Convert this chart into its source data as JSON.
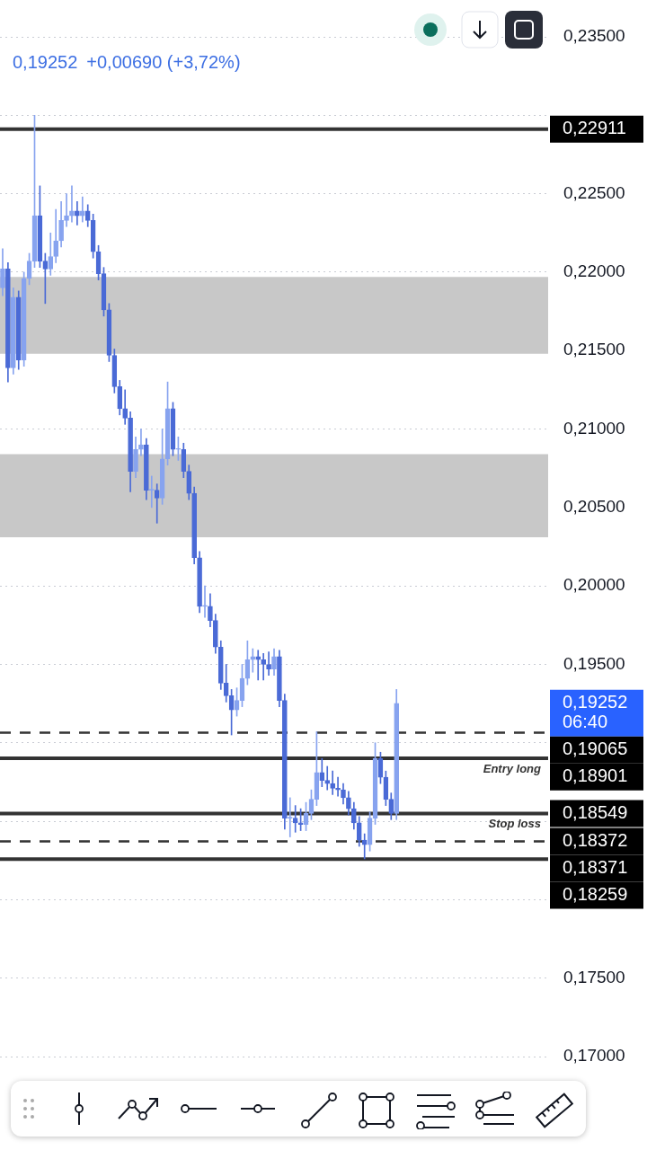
{
  "chart_data": {
    "type": "candlestick",
    "colors": [
      "#87a3ef",
      "#4a6ad6",
      "#87a3ef",
      "#4a6ad6",
      "#87a3ef",
      "#87a3ef",
      "#87a3ef",
      "#4a6ad6",
      "#4a6ad6",
      "#87a3ef",
      "#87a3ef",
      "#87a3ef",
      "#87a3ef",
      "#87a3ef",
      "#4a6ad6",
      "#87a3ef",
      "#4a6ad6",
      "#4a6ad6",
      "#4a6ad6",
      "#4a6ad6",
      "#4a6ad6",
      "#4a6ad6",
      "#4a6ad6",
      "#4a6ad6",
      "#4a6ad6",
      "#87a3ef",
      "#87a3ef",
      "#4a6ad6",
      "#87a3ef",
      "#4a6ad6",
      "#87a3ef",
      "#87a3ef",
      "#4a6ad6",
      "#87a3ef",
      "#4a6ad6",
      "#4a6ad6",
      "#4a6ad6",
      "#4a6ad6",
      "#87a3ef",
      "#4a6ad6",
      "#4a6ad6",
      "#4a6ad6",
      "#4a6ad6",
      "#4a6ad6",
      "#87a3ef",
      "#87a3ef",
      "#87a3ef",
      "#87a3ef",
      "#4a6ad6",
      "#4a6ad6",
      "#4a6ad6",
      "#87a3ef",
      "#4a6ad6",
      "#4a6ad6",
      "#87a3ef",
      "#4a6ad6",
      "#4a6ad6",
      "#87a3ef",
      "#87a3ef",
      "#87a3ef",
      "#4a6ad6",
      "#4a6ad6",
      "#4a6ad6",
      "#4a6ad6",
      "#4a6ad6",
      "#4a6ad6",
      "#4a6ad6",
      "#4a6ad6",
      "#4a6ad6",
      "#87a3ef",
      "#87a3ef",
      "#4a6ad6",
      "#4a6ad6",
      "#4a6ad6",
      "#87a3ef",
      null,
      null,
      null,
      null,
      null,
      null,
      null,
      null,
      null,
      null,
      null,
      null,
      null,
      null,
      null,
      null,
      null,
      null,
      null,
      null,
      null,
      null,
      null,
      null,
      null,
      null,
      null,
      null
    ],
    "categories": [
      null,
      null,
      null,
      null,
      null,
      null,
      null,
      null,
      null,
      null,
      null,
      null,
      null,
      null,
      null,
      null,
      null,
      null,
      null,
      null,
      null,
      null,
      null,
      null,
      null,
      null,
      null,
      null,
      null,
      null,
      null,
      null,
      null,
      null,
      null,
      null,
      null,
      null,
      null,
      null,
      null,
      null,
      null,
      null,
      null,
      null,
      null,
      null,
      null,
      null,
      null,
      null,
      null,
      null,
      null,
      null,
      null,
      null,
      null,
      null,
      null,
      null,
      null,
      null,
      null,
      null,
      null,
      null,
      null,
      null,
      null,
      null,
      null,
      null,
      null,
      null,
      null,
      null,
      null,
      null,
      null,
      null,
      null,
      null,
      null,
      null,
      null,
      null,
      null,
      null,
      null,
      null,
      null,
      null,
      null,
      null,
      null,
      null,
      null,
      null,
      null,
      null,
      null
    ],
    "ohlc": [
      [
        0.219,
        0.2215,
        0.2185,
        0.2202
      ],
      [
        0.2202,
        0.2206,
        0.213,
        0.2139
      ],
      [
        0.2139,
        0.219,
        0.2135,
        0.2184
      ],
      [
        0.2184,
        0.2188,
        0.2138,
        0.2144
      ],
      [
        0.2144,
        0.22,
        0.214,
        0.2196
      ],
      [
        0.2196,
        0.2212,
        0.2192,
        0.2207
      ],
      [
        0.2207,
        0.23,
        0.2203,
        0.2236
      ],
      [
        0.2236,
        0.2255,
        0.2203,
        0.2207
      ],
      [
        0.2207,
        0.2212,
        0.218,
        0.2202
      ],
      [
        0.2202,
        0.2225,
        0.2198,
        0.221
      ],
      [
        0.221,
        0.224,
        0.2206,
        0.222
      ],
      [
        0.222,
        0.2245,
        0.2216,
        0.2233
      ],
      [
        0.2233,
        0.225,
        0.2229,
        0.2236
      ],
      [
        0.2236,
        0.2255,
        0.2232,
        0.2239
      ],
      [
        0.2239,
        0.2245,
        0.223,
        0.2236
      ],
      [
        0.2236,
        0.2248,
        0.2232,
        0.2239
      ],
      [
        0.2239,
        0.2243,
        0.2229,
        0.2233
      ],
      [
        0.2233,
        0.2237,
        0.2209,
        0.2213
      ],
      [
        0.2213,
        0.2217,
        0.2195,
        0.2199
      ],
      [
        0.2199,
        0.2203,
        0.2172,
        0.2176
      ],
      [
        0.2176,
        0.218,
        0.2143,
        0.2147
      ],
      [
        0.2147,
        0.2151,
        0.2123,
        0.2127
      ],
      [
        0.2127,
        0.2131,
        0.2109,
        0.2113
      ],
      [
        0.2113,
        0.2125,
        0.2103,
        0.2107
      ],
      [
        0.2107,
        0.2111,
        0.206,
        0.2073
      ],
      [
        0.2073,
        0.2095,
        0.2069,
        0.2087
      ],
      [
        0.2087,
        0.21,
        0.2083,
        0.209
      ],
      [
        0.209,
        0.2094,
        0.2055,
        0.2061
      ],
      [
        0.2061,
        0.207,
        0.205,
        0.2061
      ],
      [
        0.2061,
        0.2065,
        0.204,
        0.2056
      ],
      [
        0.2056,
        0.21,
        0.2052,
        0.2081
      ],
      [
        0.2081,
        0.213,
        0.2077,
        0.2113
      ],
      [
        0.2113,
        0.2117,
        0.2083,
        0.2087
      ],
      [
        0.2087,
        0.2095,
        0.208,
        0.2087
      ],
      [
        0.2087,
        0.2091,
        0.2069,
        0.2073
      ],
      [
        0.2073,
        0.2077,
        0.2055,
        0.2059
      ],
      [
        0.2059,
        0.2063,
        0.2014,
        0.2018
      ],
      [
        0.2018,
        0.2022,
        0.1983,
        0.1987
      ],
      [
        0.1987,
        0.2,
        0.198,
        0.1987
      ],
      [
        0.1987,
        0.1995,
        0.1974,
        0.1978
      ],
      [
        0.1978,
        0.1982,
        0.1957,
        0.1961
      ],
      [
        0.1961,
        0.1965,
        0.1934,
        0.1938
      ],
      [
        0.1938,
        0.195,
        0.1926,
        0.193
      ],
      [
        0.193,
        0.1934,
        0.1905,
        0.1921
      ],
      [
        0.1921,
        0.1935,
        0.1917,
        0.1927
      ],
      [
        0.1927,
        0.195,
        0.1923,
        0.1941
      ],
      [
        0.1941,
        0.1965,
        0.1937,
        0.1953
      ],
      [
        0.1953,
        0.196,
        0.1945,
        0.1955
      ],
      [
        0.1955,
        0.1959,
        0.194,
        0.1953
      ],
      [
        0.1953,
        0.1957,
        0.194,
        0.195
      ],
      [
        0.195,
        0.1958,
        0.1943,
        0.1947
      ],
      [
        0.1947,
        0.196,
        0.1943,
        0.1955
      ],
      [
        0.1955,
        0.1959,
        0.1923,
        0.1927
      ],
      [
        0.1927,
        0.1931,
        0.1845,
        0.1852
      ],
      [
        0.1852,
        0.1865,
        0.184,
        0.1852
      ],
      [
        0.1852,
        0.186,
        0.1843,
        0.1849
      ],
      [
        0.1849,
        0.1858,
        0.1844,
        0.1848
      ],
      [
        0.1848,
        0.1862,
        0.1844,
        0.1855
      ],
      [
        0.1855,
        0.187,
        0.1851,
        0.1864
      ],
      [
        0.1864,
        0.1907,
        0.186,
        0.1881
      ],
      [
        0.1881,
        0.189,
        0.1872,
        0.1876
      ],
      [
        0.1876,
        0.1885,
        0.187,
        0.1874
      ],
      [
        0.1874,
        0.1882,
        0.1867,
        0.1871
      ],
      [
        0.1871,
        0.1878,
        0.1866,
        0.187
      ],
      [
        0.187,
        0.1874,
        0.1861,
        0.1865
      ],
      [
        0.1865,
        0.1869,
        0.1854,
        0.1858
      ],
      [
        0.1858,
        0.1862,
        0.1845,
        0.1849
      ],
      [
        0.1849,
        0.1853,
        0.1834,
        0.1838
      ],
      [
        0.1838,
        0.1842,
        0.1826,
        0.1835
      ],
      [
        0.1835,
        0.1856,
        0.1831,
        0.1852
      ],
      [
        0.1852,
        0.19,
        0.1848,
        0.189
      ],
      [
        0.189,
        0.1894,
        0.1874,
        0.1878
      ],
      [
        0.1878,
        0.1882,
        0.186,
        0.1864
      ],
      [
        0.1864,
        0.1868,
        0.1851,
        0.1855
      ],
      [
        0.1855,
        0.1934,
        0.1851,
        0.19252
      ],
      null,
      null,
      null,
      null,
      null,
      null,
      null,
      null,
      null,
      null,
      null,
      null,
      null,
      null,
      null,
      null,
      null,
      null,
      null,
      null,
      null,
      null,
      null,
      null,
      null,
      null,
      null,
      null
    ],
    "ylim": [
      0.17,
      0.235
    ],
    "yticks": [
      {
        "value": 0.17,
        "label": "0,17000"
      },
      {
        "value": 0.175,
        "label": "0,17500"
      },
      {
        "value": 0.18,
        "label": null
      },
      {
        "value": 0.185,
        "label": null
      },
      {
        "value": 0.19,
        "label": null
      },
      {
        "value": 0.195,
        "label": "0,19500"
      },
      {
        "value": 0.2,
        "label": "0,20000"
      },
      {
        "value": 0.205,
        "label": "0,20500"
      },
      {
        "value": 0.21,
        "label": "0,21000"
      },
      {
        "value": 0.215,
        "label": "0,21500"
      },
      {
        "value": 0.22,
        "label": "0,22000"
      },
      {
        "value": 0.225,
        "label": "0,22500"
      },
      {
        "value": 0.23,
        "label": null
      },
      {
        "value": 0.235,
        "label": "0,23500"
      }
    ],
    "grid": "y",
    "legend": false,
    "tick_labels": "y",
    "bands": [
      {
        "axis": "y",
        "from": 0.2148,
        "to": 0.2197,
        "color": "#c8c8c8"
      },
      {
        "axis": "y",
        "from": 0.2031,
        "to": 0.2084,
        "color": "#c8c8c8"
      }
    ],
    "ref_lines": [
      {
        "axis": "y",
        "value": 0.22911,
        "label": "0,22911",
        "color": "#333333",
        "line_style": "solid"
      },
      {
        "axis": "y",
        "value": 0.19065,
        "label": "0,19065",
        "color": "#333333",
        "line_style": "dashed"
      },
      {
        "axis": "y",
        "value": 0.18901,
        "label": "0,18901",
        "color": "#333333",
        "line_style": "solid"
      },
      {
        "axis": "y",
        "value": 0.18549,
        "label": "0,18549",
        "color": "#333333",
        "line_style": "solid"
      },
      {
        "axis": "y",
        "value": 0.18372,
        "label": "0,18372",
        "color": "#333333",
        "line_style": "dashed"
      },
      {
        "axis": "y",
        "value": 0.18259,
        "label": "0,18259",
        "color": "#333333",
        "line_style": "solid"
      }
    ],
    "annotations": [
      "0,19252",
      "+0,00690 (+3,72%)",
      "06:40",
      {
        "text": "Entry long",
        "y": 0.18901
      },
      {
        "text": "Stop loss",
        "y": 0.18549
      },
      "0,18371"
    ]
  }
}
